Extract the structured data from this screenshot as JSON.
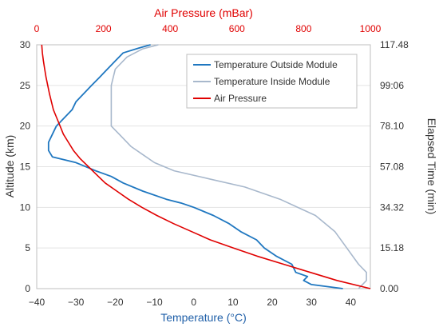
{
  "chart_data": {
    "type": "line",
    "axes": {
      "bottom": {
        "title": "Temperature (°C)",
        "range": [
          -40,
          45
        ],
        "ticks": [
          -40,
          -30,
          -20,
          -10,
          0,
          10,
          20,
          30,
          40
        ],
        "tick_labels": [
          "−40",
          "−30",
          "−20",
          "−10",
          "0",
          "10",
          "20",
          "30",
          "40"
        ]
      },
      "top": {
        "title": "Air Pressure (mBar)",
        "range": [
          0,
          1000
        ],
        "ticks": [
          0,
          200,
          400,
          600,
          800,
          1000
        ],
        "tick_labels": [
          "0",
          "200",
          "400",
          "600",
          "800",
          "1000"
        ]
      },
      "left": {
        "title": "Altitude (km)",
        "range": [
          0,
          30
        ],
        "ticks": [
          0,
          5,
          10,
          15,
          20,
          25,
          30
        ],
        "tick_labels": [
          "0",
          "5",
          "10",
          "15",
          "20",
          "25",
          "30"
        ]
      },
      "right": {
        "title": "Elapsed Time (min)",
        "tick_labels": [
          "0.00",
          "15.18",
          "34.32",
          "57.08",
          "78.10",
          "99:06",
          "117.48"
        ]
      }
    },
    "legend_position": "top-right",
    "series": [
      {
        "name": "Temperature Outside Module",
        "color": "#1f77c0",
        "points": [
          [
            38,
            0
          ],
          [
            30,
            0.5
          ],
          [
            28,
            1
          ],
          [
            29,
            1.5
          ],
          [
            26,
            2
          ],
          [
            25,
            3
          ],
          [
            21,
            4
          ],
          [
            18,
            5
          ],
          [
            16,
            6
          ],
          [
            12,
            7
          ],
          [
            9,
            8
          ],
          [
            5,
            9
          ],
          [
            0,
            10
          ],
          [
            -3,
            10.5
          ],
          [
            -7,
            11
          ],
          [
            -13,
            12
          ],
          [
            -18,
            13
          ],
          [
            -21,
            13.8
          ],
          [
            -25,
            14.5
          ],
          [
            -30,
            15.5
          ],
          [
            -36,
            16.2
          ],
          [
            -37,
            17
          ],
          [
            -37,
            18
          ],
          [
            -36,
            19
          ],
          [
            -35,
            20
          ],
          [
            -33,
            21
          ],
          [
            -31,
            22
          ],
          [
            -30,
            23
          ],
          [
            -28,
            24
          ],
          [
            -26,
            25
          ],
          [
            -24,
            26
          ],
          [
            -22,
            27
          ],
          [
            -20,
            28
          ],
          [
            -18,
            29
          ],
          [
            -14,
            29.6
          ],
          [
            -11,
            30
          ]
        ]
      },
      {
        "name": "Temperature Inside Module",
        "color": "#a8b8cc",
        "points": [
          [
            42,
            0
          ],
          [
            44,
            1
          ],
          [
            44,
            2
          ],
          [
            42,
            3
          ],
          [
            39,
            5
          ],
          [
            36,
            7
          ],
          [
            31,
            9
          ],
          [
            22,
            11
          ],
          [
            13,
            12.5
          ],
          [
            4,
            13.5
          ],
          [
            -5,
            14.5
          ],
          [
            -10,
            15.5
          ],
          [
            -13,
            16.5
          ],
          [
            -16,
            17.5
          ],
          [
            -19,
            19
          ],
          [
            -21,
            20
          ],
          [
            -21,
            21
          ],
          [
            -21,
            23
          ],
          [
            -21,
            25
          ],
          [
            -20,
            27
          ],
          [
            -17,
            28.5
          ],
          [
            -13,
            29.5
          ],
          [
            -9,
            30
          ]
        ]
      },
      {
        "name": "Air Pressure",
        "color": "#e00000",
        "pressure_axis": "top",
        "points": [
          [
            1000,
            0
          ],
          [
            900,
            1
          ],
          [
            820,
            2
          ],
          [
            740,
            3
          ],
          [
            660,
            4
          ],
          [
            590,
            5
          ],
          [
            520,
            6
          ],
          [
            465,
            7
          ],
          [
            410,
            8
          ],
          [
            360,
            9
          ],
          [
            315,
            10
          ],
          [
            275,
            11
          ],
          [
            240,
            12
          ],
          [
            205,
            13
          ],
          [
            180,
            14
          ],
          [
            155,
            15
          ],
          [
            130,
            16
          ],
          [
            110,
            17
          ],
          [
            95,
            18
          ],
          [
            80,
            19
          ],
          [
            70,
            20
          ],
          [
            60,
            21
          ],
          [
            50,
            22
          ],
          [
            44,
            23
          ],
          [
            38,
            24
          ],
          [
            33,
            25
          ],
          [
            28,
            26
          ],
          [
            24,
            27
          ],
          [
            20,
            28
          ],
          [
            17,
            29
          ],
          [
            15,
            30
          ]
        ]
      }
    ]
  }
}
